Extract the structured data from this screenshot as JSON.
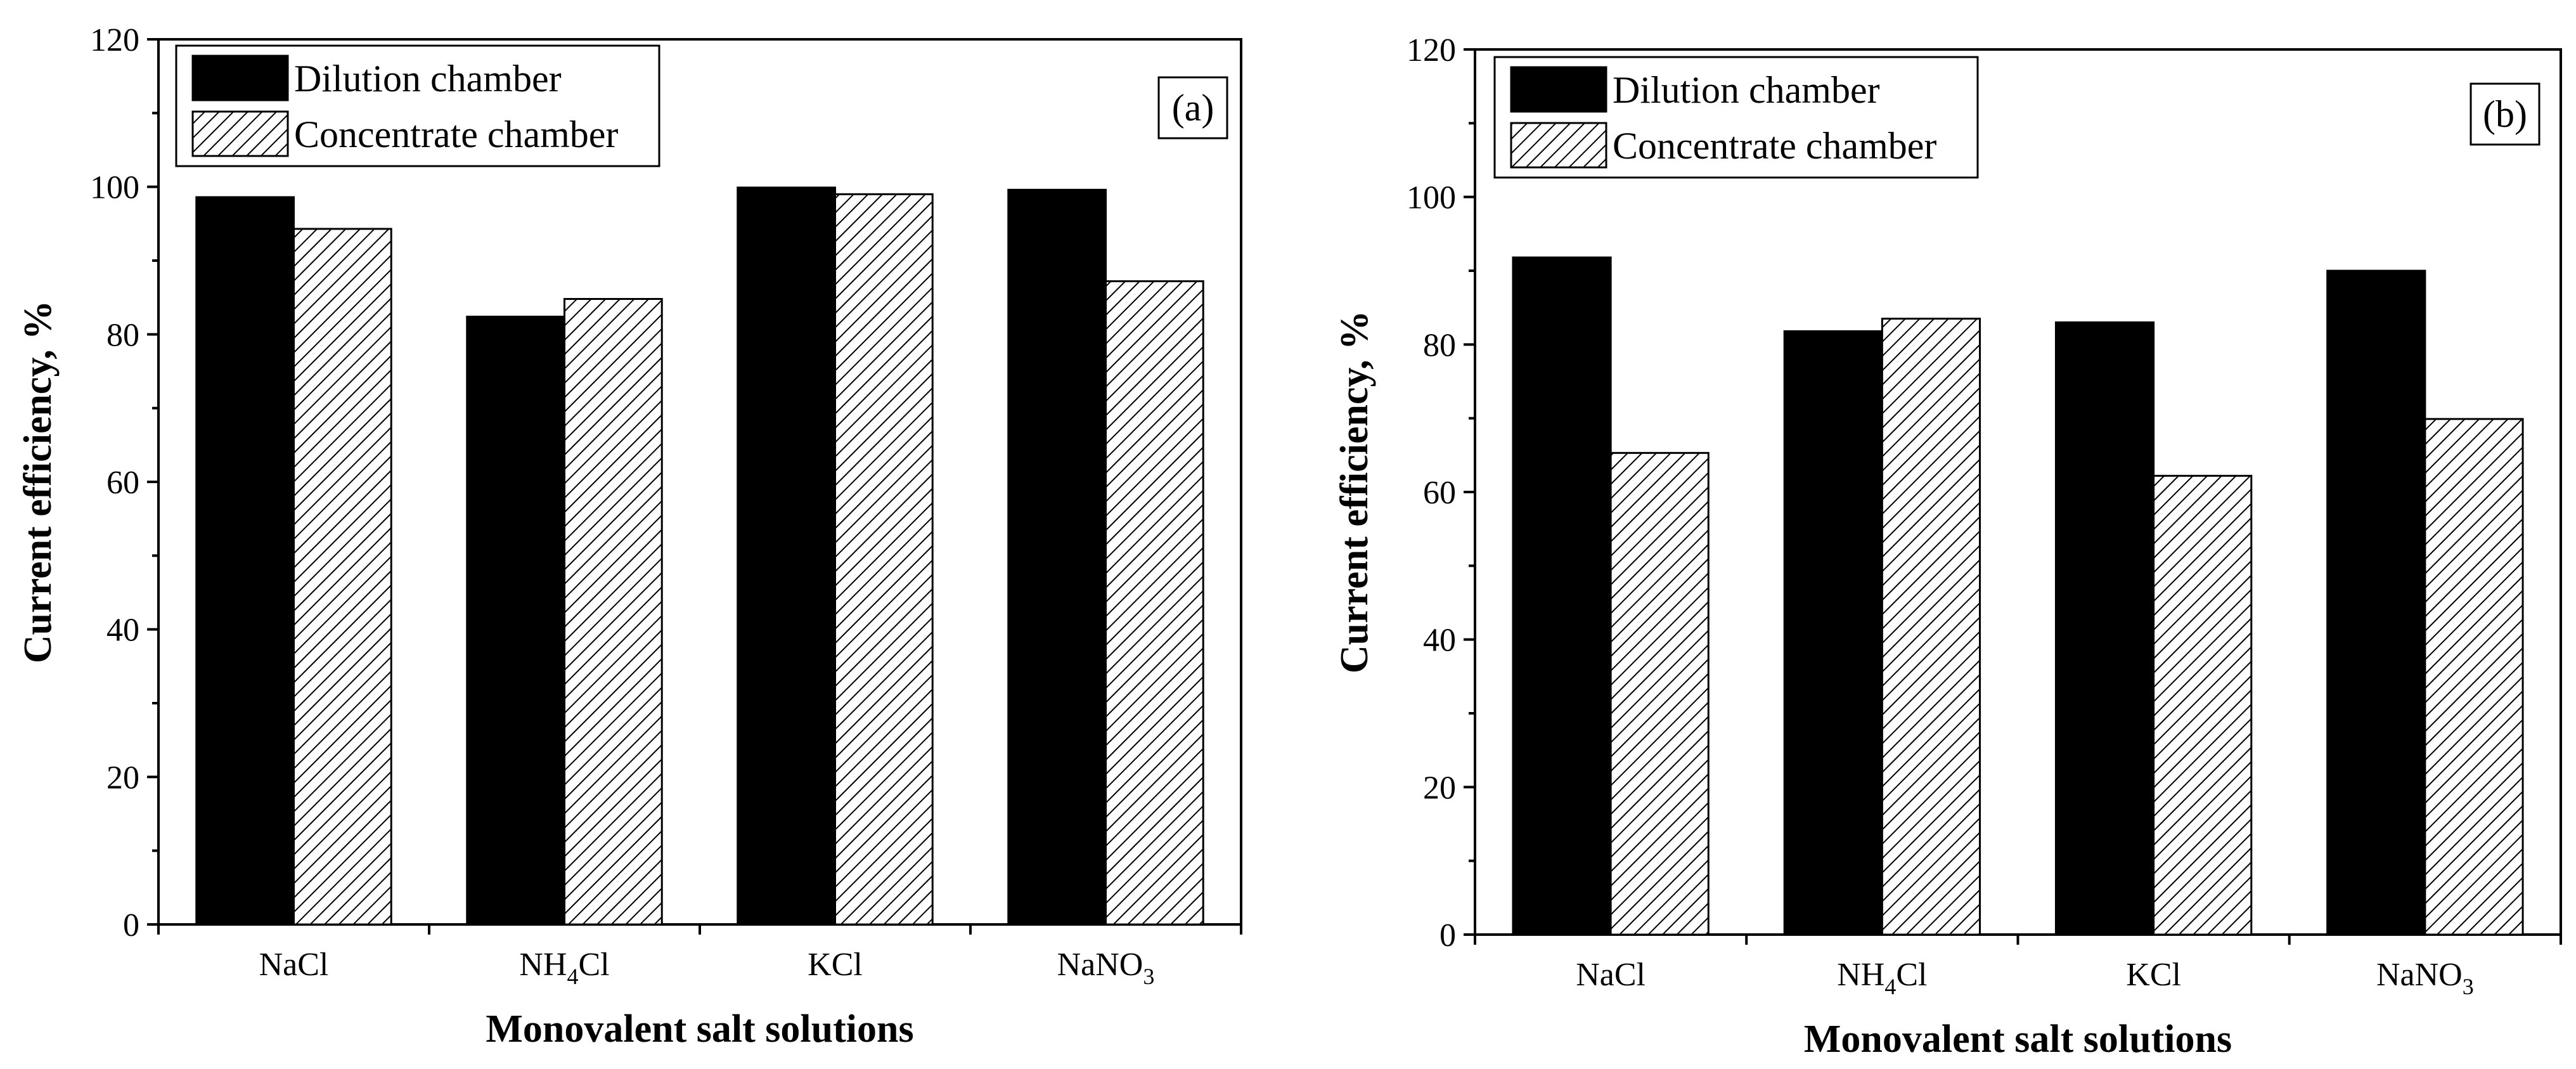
{
  "chart_data": [
    {
      "type": "bar",
      "panel_label": "(a)",
      "categories": [
        {
          "base": "NaCl",
          "sub": "",
          "tail": ""
        },
        {
          "base": "NH",
          "sub": "4",
          "tail": "Cl"
        },
        {
          "base": "KCl",
          "sub": "",
          "tail": ""
        },
        {
          "base": "NaNO",
          "sub": "3",
          "tail": ""
        }
      ],
      "series": [
        {
          "name": "Dilution chamber",
          "fill": "solid",
          "values": [
            98.6,
            82.4,
            99.9,
            99.6
          ]
        },
        {
          "name": "Concentrate chamber",
          "fill": "hatch",
          "values": [
            94.3,
            84.8,
            99.0,
            87.2
          ]
        }
      ],
      "xlabel": "Monovalent salt solutions",
      "ylabel": "Current efficiency, %",
      "ylim": [
        0,
        120
      ],
      "yticks": [
        0,
        20,
        40,
        60,
        80,
        100,
        120
      ],
      "legend_position": "top-left",
      "label_position": "top-right"
    },
    {
      "type": "bar",
      "panel_label": "(b)",
      "categories": [
        {
          "base": "NaCl",
          "sub": "",
          "tail": ""
        },
        {
          "base": "NH",
          "sub": "4",
          "tail": "Cl"
        },
        {
          "base": "KCl",
          "sub": "",
          "tail": ""
        },
        {
          "base": "NaNO",
          "sub": "3",
          "tail": ""
        }
      ],
      "series": [
        {
          "name": "Dilution chamber",
          "fill": "solid",
          "values": [
            91.8,
            81.8,
            83.0,
            90.0
          ]
        },
        {
          "name": "Concentrate chamber",
          "fill": "hatch",
          "values": [
            65.3,
            83.5,
            62.2,
            69.9
          ]
        }
      ],
      "xlabel": "Monovalent salt solutions",
      "ylabel": "Current efficiency, %",
      "ylim": [
        0,
        120
      ],
      "yticks": [
        0,
        20,
        40,
        60,
        80,
        100,
        120
      ],
      "legend_position": "top-left",
      "label_position": "top-right"
    }
  ],
  "colors": {
    "dilution_fill": "#000000",
    "hatch_line": "#000000",
    "hatch_background": "#ffffff",
    "axis": "#000000"
  }
}
